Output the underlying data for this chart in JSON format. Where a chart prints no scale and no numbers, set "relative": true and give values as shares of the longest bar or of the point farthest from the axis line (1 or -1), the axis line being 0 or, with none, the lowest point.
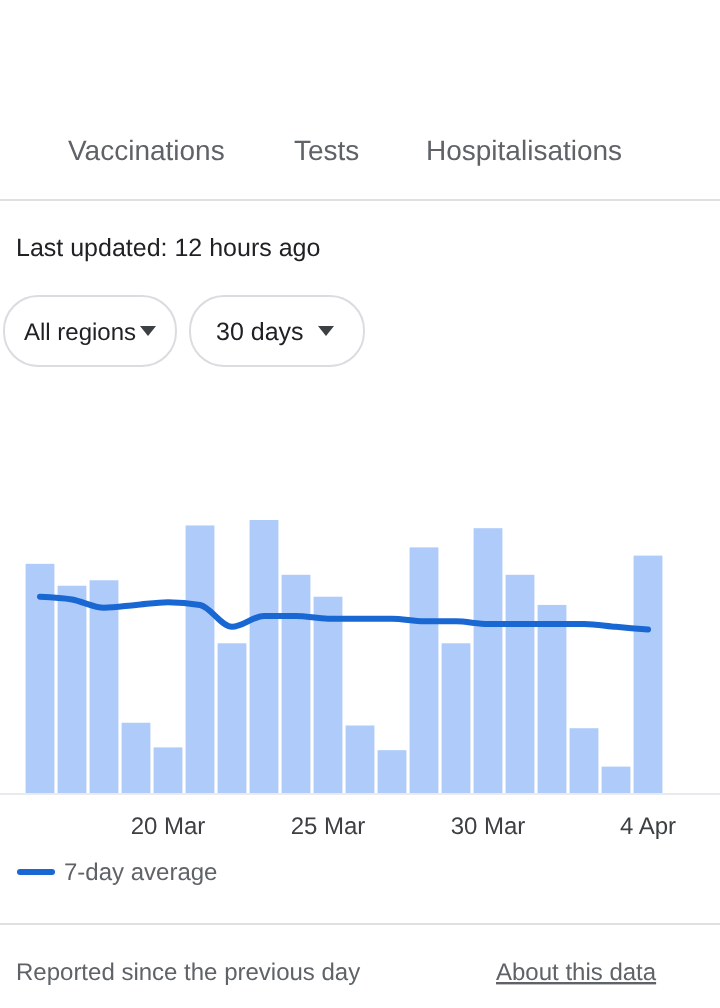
{
  "chart_data": {
    "type": "bar",
    "relative": true,
    "legend": "bottom left",
    "categories": [
      null,
      null,
      null,
      null,
      "20 Mar",
      null,
      null,
      null,
      null,
      "25 Mar",
      null,
      null,
      null,
      null,
      "30 Mar",
      null,
      null,
      null,
      null,
      "4 Apr"
    ],
    "series": [
      {
        "color": "#aecbfa",
        "values": [
          0.84,
          0.76,
          0.78,
          0.26,
          0.17,
          0.98,
          0.55,
          1,
          0.8,
          0.72,
          0.25,
          0.16,
          0.9,
          0.55,
          0.97,
          0.8,
          0.69,
          0.24,
          0.1,
          0.87
        ]
      },
      {
        "type": "line",
        "name": "7-day average",
        "color": "#1967d2",
        "values": [
          0.72,
          0.71,
          0.68,
          0.69,
          0.7,
          0.69,
          0.61,
          0.65,
          0.65,
          0.64,
          0.64,
          0.64,
          0.63,
          0.63,
          0.62,
          0.62,
          0.62,
          0.62,
          0.61,
          0.6
        ]
      }
    ],
    "annotations": [
      "Vaccinations",
      "Tests",
      "Hospitalisations",
      "Last updated: 12 hours ago",
      "All regions",
      "30 days",
      "Reported since the previous day",
      "About this data"
    ]
  }
}
